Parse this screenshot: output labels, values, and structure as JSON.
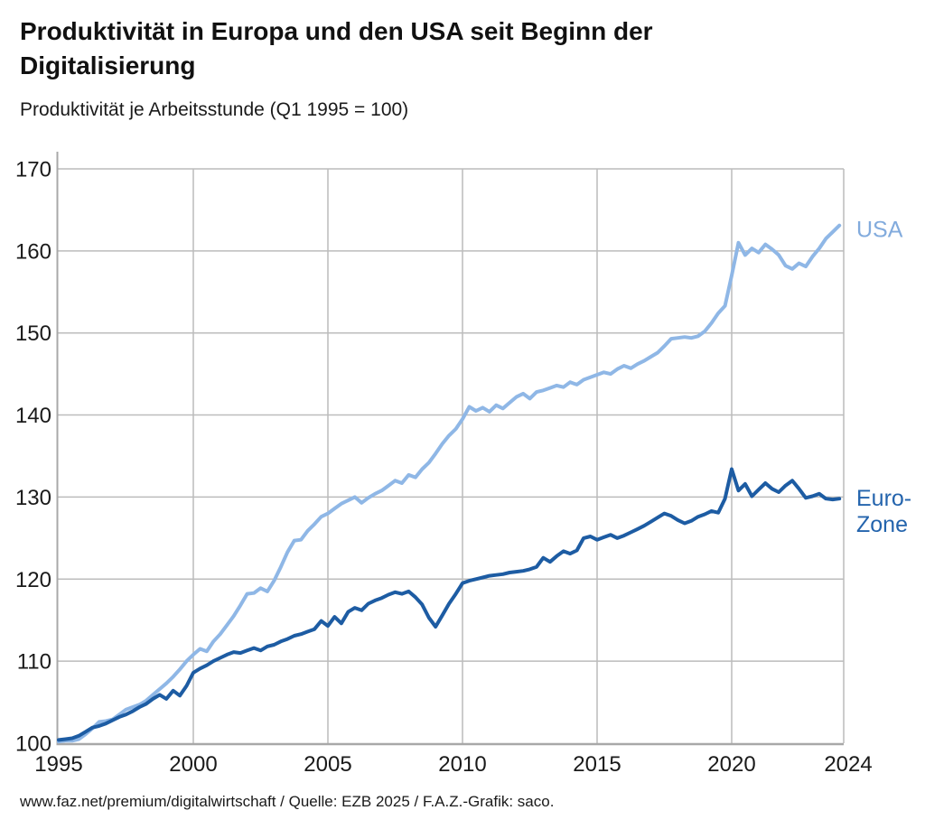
{
  "header": {
    "title_lines": [
      "Produktivität in Europa und den USA seit Beginn der",
      "Digitalisierung"
    ],
    "subtitle": "Produktivität je Arbeitsstunde (Q1 1995 = 100)"
  },
  "footer": {
    "text": "www.faz.net/premium/digitalwirtschaft / Quelle: EZB 2025 / F.A.Z.-Grafik: saco."
  },
  "chart_data": {
    "type": "line",
    "title": "Produktivität in Europa und den USA seit Beginn der Digitalisierung",
    "subtitle": "Produktivität je Arbeitsstunde (Q1 1995 = 100)",
    "grid": true,
    "x_axis": {
      "start_year": 1995,
      "step_years": 0.25,
      "tick_labels": [
        "1995",
        "2000",
        "2005",
        "2010",
        "2015",
        "2020",
        "2024"
      ],
      "tick_years": [
        1995,
        2000,
        2005,
        2010,
        2015,
        2020,
        2024.33
      ],
      "xlim": [
        1995,
        2024.17
      ]
    },
    "y_axis": {
      "tick_labels": [
        "100",
        "110",
        "120",
        "130",
        "140",
        "150",
        "160",
        "170"
      ],
      "ticks": [
        100,
        110,
        120,
        130,
        140,
        150,
        160,
        170
      ],
      "ylim": [
        100,
        170
      ]
    },
    "colors": {
      "grid": "#bcbcbc",
      "axis": "#a8a8a8",
      "usa_line": "#8fb7e6",
      "usa_label": "#82abdd",
      "euro_line": "#1d5ca3",
      "euro_label": "#2464ad"
    },
    "series": [
      {
        "name": "USA",
        "label_lines": [
          "USA"
        ],
        "color": "#8fb7e6",
        "label_color": "#82abdd",
        "values": [
          100.2,
          100.3,
          100.3,
          100.5,
          101.1,
          101.8,
          102.6,
          102.7,
          102.9,
          103.5,
          104.1,
          104.4,
          104.7,
          105.2,
          105.9,
          106.6,
          107.3,
          108.1,
          109.0,
          110.0,
          110.8,
          111.5,
          111.2,
          112.4,
          113.3,
          114.4,
          115.5,
          116.8,
          118.2,
          118.3,
          118.9,
          118.5,
          119.8,
          121.5,
          123.3,
          124.7,
          124.8,
          125.9,
          126.7,
          127.6,
          128.0,
          128.6,
          129.2,
          129.6,
          130.0,
          129.3,
          129.9,
          130.4,
          130.8,
          131.4,
          132.0,
          131.7,
          132.7,
          132.4,
          133.4,
          134.2,
          135.3,
          136.5,
          137.5,
          138.3,
          139.5,
          141.0,
          140.5,
          140.9,
          140.4,
          141.2,
          140.8,
          141.5,
          142.2,
          142.6,
          142.0,
          142.8,
          143.0,
          143.3,
          143.6,
          143.4,
          144.0,
          143.7,
          144.3,
          144.6,
          144.9,
          145.2,
          145.0,
          145.6,
          146.0,
          145.7,
          146.2,
          146.6,
          147.1,
          147.6,
          148.4,
          149.3,
          149.4,
          149.5,
          149.4,
          149.6,
          150.2,
          151.2,
          152.4,
          153.3,
          157.0,
          161.0,
          159.5,
          160.3,
          159.8,
          160.8,
          160.2,
          159.5,
          158.2,
          157.8,
          158.5,
          158.1,
          159.3,
          160.3,
          161.5,
          162.3,
          163.1
        ]
      },
      {
        "name": "Euro-Zone",
        "label_lines": [
          "Euro-",
          "Zone"
        ],
        "color": "#1d5ca3",
        "label_color": "#2464ad",
        "values": [
          100.4,
          100.5,
          100.6,
          100.9,
          101.4,
          101.9,
          102.1,
          102.4,
          102.8,
          103.2,
          103.5,
          103.9,
          104.4,
          104.8,
          105.4,
          105.9,
          105.4,
          106.4,
          105.8,
          107.0,
          108.6,
          109.1,
          109.5,
          110.0,
          110.4,
          110.8,
          111.1,
          111.0,
          111.3,
          111.6,
          111.3,
          111.8,
          112.0,
          112.4,
          112.7,
          113.1,
          113.3,
          113.6,
          113.9,
          114.9,
          114.3,
          115.4,
          114.6,
          116.0,
          116.5,
          116.2,
          117.0,
          117.4,
          117.7,
          118.1,
          118.4,
          118.2,
          118.5,
          117.8,
          116.9,
          115.3,
          114.2,
          115.6,
          117.0,
          118.2,
          119.5,
          119.8,
          120.0,
          120.2,
          120.4,
          120.5,
          120.6,
          120.8,
          120.9,
          121.0,
          121.2,
          121.5,
          122.6,
          122.1,
          122.8,
          123.4,
          123.1,
          123.5,
          125.0,
          125.2,
          124.8,
          125.1,
          125.4,
          125.0,
          125.3,
          125.7,
          126.1,
          126.5,
          127.0,
          127.5,
          128.0,
          127.7,
          127.2,
          126.8,
          127.1,
          127.6,
          127.9,
          128.3,
          128.1,
          129.8,
          133.4,
          130.8,
          131.6,
          130.1,
          130.9,
          131.7,
          131.0,
          130.6,
          131.4,
          132.0,
          131.0,
          129.9,
          130.1,
          130.4,
          129.8,
          129.7,
          129.8
        ]
      }
    ]
  }
}
